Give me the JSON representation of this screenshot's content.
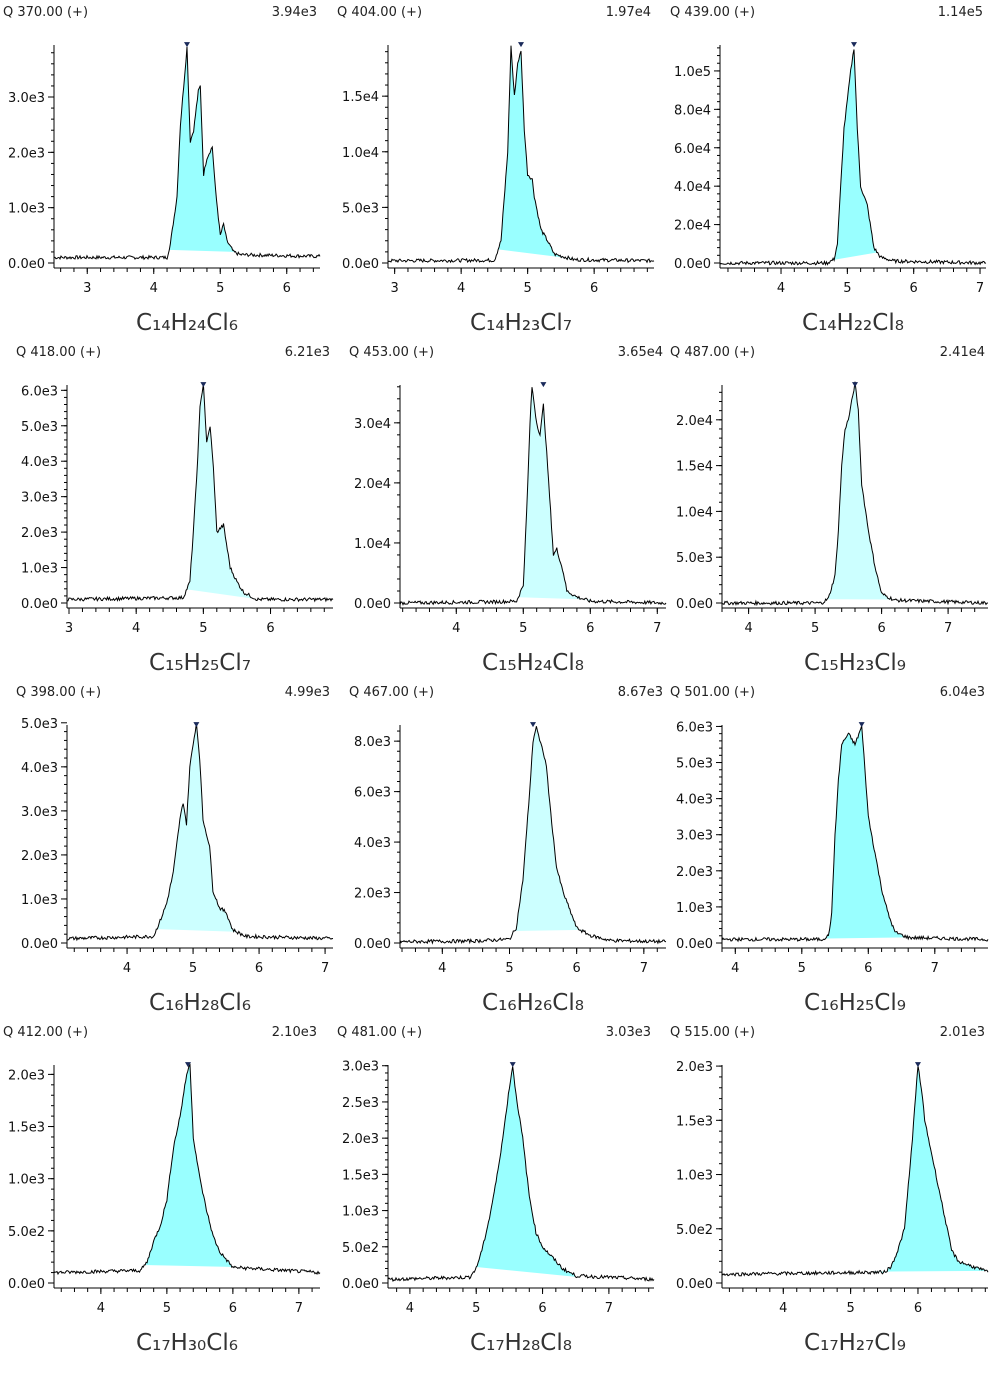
{
  "chart_data": [
    {
      "type": "area",
      "title": "Q 370.00 (+)",
      "max_label": "3.94e3",
      "formula": "C₁₄H₂₄Cl₆",
      "fill_color": "#99ffff",
      "xlim": [
        2.5,
        6.5
      ],
      "xticks": [
        3,
        4,
        5,
        6
      ],
      "ylim": [
        0,
        3940
      ],
      "yticks": [
        0,
        1000,
        2000,
        3000
      ],
      "ytick_labels": [
        "0.0e0",
        "1.0e3",
        "2.0e3",
        "3.0e3"
      ],
      "peak_x": 4.5,
      "integration": [
        4.22,
        5.22
      ],
      "x": [
        2.5,
        4.2,
        4.25,
        4.35,
        4.4,
        4.45,
        4.5,
        4.55,
        4.6,
        4.67,
        4.7,
        4.75,
        4.8,
        4.88,
        4.93,
        5.0,
        5.05,
        5.1,
        5.2,
        5.3,
        6.5
      ],
      "y": [
        100,
        100,
        350,
        1200,
        2500,
        3200,
        3900,
        2200,
        2400,
        3100,
        3200,
        1600,
        1900,
        2100,
        1300,
        500,
        700,
        400,
        200,
        150,
        120
      ]
    },
    {
      "type": "area",
      "title": "Q 404.00 (+)",
      "max_label": "1.97e4",
      "formula": "C₁₄H₂₃Cl₇",
      "fill_color": "#99ffff",
      "xlim": [
        2.9,
        6.9
      ],
      "xticks": [
        3,
        4,
        5,
        6
      ],
      "ylim": [
        0,
        19600
      ],
      "yticks": [
        0,
        5000,
        10000,
        15000
      ],
      "ytick_labels": [
        "0.0e0",
        "5.0e3",
        "1.0e4",
        "1.5e4"
      ],
      "peak_x": 4.9,
      "integration": [
        4.55,
        5.7
      ],
      "x": [
        2.9,
        4.5,
        4.6,
        4.7,
        4.75,
        4.8,
        4.85,
        4.9,
        4.95,
        5.0,
        5.07,
        5.1,
        5.2,
        5.3,
        5.4,
        5.7,
        6.9
      ],
      "y": [
        200,
        250,
        2000,
        10000,
        19500,
        15000,
        18000,
        19000,
        12000,
        8000,
        7500,
        6000,
        3000,
        2000,
        800,
        300,
        200
      ]
    },
    {
      "type": "area",
      "title": "Q 439.00 (+)",
      "max_label": "1.14e5",
      "formula": "C₁₄H₂₂Cl₈",
      "fill_color": "#99ffff",
      "xlim": [
        3.08,
        7.09
      ],
      "xticks": [
        4,
        5,
        6,
        7
      ],
      "ylim": [
        0,
        113500
      ],
      "yticks": [
        0,
        20000,
        40000,
        60000,
        80000,
        100000
      ],
      "ytick_labels": [
        "0.0e0",
        "2.0e4",
        "4.0e4",
        "6.0e4",
        "8.0e4",
        "1.0e5"
      ],
      "peak_x": 5.1,
      "integration": [
        4.75,
        5.45
      ],
      "x": [
        3.08,
        4.7,
        4.8,
        4.85,
        4.9,
        4.95,
        5.0,
        5.05,
        5.1,
        5.15,
        5.2,
        5.3,
        5.4,
        5.5,
        5.7,
        7.09
      ],
      "y": [
        0,
        0,
        2000,
        10000,
        40000,
        70000,
        85000,
        100000,
        112000,
        70000,
        40000,
        30000,
        8000,
        3000,
        1000,
        0
      ]
    },
    {
      "type": "area",
      "title": "Q 418.00 (+)",
      "max_label": "6.21e3",
      "formula": "C₁₅H₂₅Cl₇",
      "fill_color": "#ccffff",
      "xlim": [
        2.97,
        6.93
      ],
      "xticks": [
        3,
        4,
        5,
        6
      ],
      "ylim": [
        0,
        6150
      ],
      "yticks": [
        0,
        1000,
        2000,
        3000,
        4000,
        5000,
        6000
      ],
      "ytick_labels": [
        "0.0e0",
        "1.0e3",
        "2.0e3",
        "3.0e3",
        "4.0e3",
        "5.0e3",
        "6.0e3"
      ],
      "peak_x": 5.0,
      "integration": [
        4.75,
        5.75
      ],
      "x": [
        2.97,
        4.7,
        4.8,
        4.85,
        4.9,
        4.95,
        5.0,
        5.05,
        5.1,
        5.15,
        5.2,
        5.3,
        5.4,
        5.5,
        5.6,
        5.8,
        6.93
      ],
      "y": [
        100,
        150,
        600,
        2000,
        3500,
        5500,
        6200,
        4500,
        5000,
        3800,
        2000,
        2200,
        1000,
        600,
        300,
        100,
        100
      ]
    },
    {
      "type": "area",
      "title": "Q 453.00 (+)",
      "max_label": "3.65e4",
      "formula": "C₁₅H₂₄Cl₈",
      "fill_color": "#ccffff",
      "xlim": [
        3.16,
        7.13
      ],
      "xticks": [
        4,
        5,
        6,
        7
      ],
      "ylim": [
        0,
        36300
      ],
      "yticks": [
        0,
        10000,
        20000,
        30000
      ],
      "ytick_labels": [
        "0.0e0",
        "1.0e4",
        "2.0e4",
        "3.0e4"
      ],
      "peak_x": 5.3,
      "integration": [
        4.92,
        6.0
      ],
      "x": [
        3.16,
        4.6,
        4.9,
        5.0,
        5.05,
        5.1,
        5.13,
        5.2,
        5.25,
        5.3,
        5.35,
        5.45,
        5.5,
        5.6,
        5.65,
        5.8,
        6.0,
        7.13
      ],
      "y": [
        0,
        200,
        300,
        3000,
        15000,
        30000,
        36000,
        30000,
        28000,
        33000,
        25000,
        8000,
        9000,
        5000,
        2000,
        1000,
        300,
        0
      ]
    },
    {
      "type": "area",
      "title": "Q 487.00 (+)",
      "max_label": "2.41e4",
      "formula": "C₁₅H₂₃Cl₉",
      "fill_color": "#ccffff",
      "xlim": [
        3.6,
        7.6
      ],
      "xticks": [
        4,
        5,
        6,
        7
      ],
      "ylim": [
        0,
        23800
      ],
      "yticks": [
        0,
        5000,
        10000,
        15000,
        20000
      ],
      "ytick_labels": [
        "0.0e0",
        "5.0e3",
        "1.0e4",
        "1.5e4",
        "2.0e4"
      ],
      "peak_x": 5.6,
      "integration": [
        5.15,
        6.2
      ],
      "x": [
        3.6,
        5.1,
        5.2,
        5.3,
        5.35,
        5.4,
        5.45,
        5.5,
        5.55,
        5.6,
        5.65,
        5.7,
        5.8,
        5.9,
        6.0,
        6.2,
        7.6
      ],
      "y": [
        0,
        0,
        500,
        3000,
        8000,
        15000,
        19000,
        20000,
        22000,
        24000,
        21000,
        13000,
        8000,
        4000,
        1000,
        300,
        0
      ]
    },
    {
      "type": "area",
      "title": "Q 398.00 (+)",
      "max_label": "4.99e3",
      "formula": "C₁₆H₂₈Cl₆",
      "fill_color": "#ccffff",
      "xlim": [
        3.09,
        7.12
      ],
      "xticks": [
        4,
        5,
        6,
        7
      ],
      "ylim": [
        0,
        4950
      ],
      "yticks": [
        0,
        1000,
        2000,
        3000,
        4000,
        5000
      ],
      "ytick_labels": [
        "0.0e0",
        "1.0e3",
        "2.0e3",
        "3.0e3",
        "4.0e3",
        "5.0e3"
      ],
      "peak_x": 5.05,
      "integration": [
        4.45,
        5.65
      ],
      "x": [
        3.09,
        4.4,
        4.5,
        4.6,
        4.7,
        4.8,
        4.85,
        4.9,
        4.95,
        5.0,
        5.05,
        5.1,
        5.15,
        5.2,
        5.25,
        5.3,
        5.4,
        5.5,
        5.6,
        5.8,
        7.12
      ],
      "y": [
        100,
        150,
        500,
        900,
        1600,
        2800,
        3200,
        2700,
        4000,
        4500,
        5000,
        4200,
        2800,
        2500,
        2200,
        1200,
        800,
        700,
        300,
        150,
        100
      ]
    },
    {
      "type": "area",
      "title": "Q 467.00 (+)",
      "max_label": "8.67e3",
      "formula": "C₁₆H₂₆Cl₈",
      "fill_color": "#ccffff",
      "xlim": [
        3.37,
        7.33
      ],
      "xticks": [
        4,
        5,
        6,
        7
      ],
      "ylim": [
        0,
        8640
      ],
      "yticks": [
        0,
        2000,
        4000,
        6000,
        8000
      ],
      "ytick_labels": [
        "0.0e0",
        "2.0e3",
        "4.0e3",
        "6.0e3",
        "8.0e3"
      ],
      "peak_x": 5.35,
      "integration": [
        5.05,
        6.1
      ],
      "x": [
        3.37,
        4.5,
        5.0,
        5.1,
        5.2,
        5.3,
        5.35,
        5.4,
        5.45,
        5.5,
        5.55,
        5.6,
        5.7,
        5.8,
        5.9,
        6.0,
        6.2,
        6.5,
        7.33
      ],
      "y": [
        50,
        80,
        150,
        600,
        2500,
        6000,
        8000,
        8600,
        8000,
        7600,
        7000,
        5500,
        3000,
        2000,
        1300,
        600,
        300,
        100,
        50
      ]
    },
    {
      "type": "area",
      "title": "Q 501.00 (+)",
      "max_label": "6.04e3",
      "formula": "C₁₆H₂₅Cl₉",
      "fill_color": "#99ffff",
      "xlim": [
        3.8,
        7.8
      ],
      "xticks": [
        4,
        5,
        6,
        7
      ],
      "ylim": [
        0,
        6040
      ],
      "yticks": [
        0,
        1000,
        2000,
        3000,
        4000,
        5000,
        6000
      ],
      "ytick_labels": [
        "0.0e0",
        "1.0e3",
        "2.0e3",
        "3.0e3",
        "4.0e3",
        "5.0e3",
        "6.0e3"
      ],
      "peak_x": 5.9,
      "integration": [
        5.35,
        6.55
      ],
      "x": [
        3.8,
        5.3,
        5.4,
        5.45,
        5.5,
        5.55,
        5.6,
        5.7,
        5.8,
        5.9,
        5.95,
        6.0,
        6.1,
        6.2,
        6.3,
        6.4,
        6.6,
        7.8
      ],
      "y": [
        100,
        100,
        200,
        800,
        3000,
        4500,
        5500,
        5800,
        5500,
        6000,
        4800,
        3500,
        2500,
        1500,
        800,
        300,
        150,
        100
      ]
    },
    {
      "type": "area",
      "title": "Q 412.00 (+)",
      "max_label": "2.10e3",
      "formula": "C₁₇H₃₀Cl₆",
      "fill_color": "#99ffff",
      "xlim": [
        3.29,
        7.32
      ],
      "xticks": [
        4,
        5,
        6,
        7
      ],
      "ylim": [
        0,
        2090
      ],
      "yticks": [
        0,
        500,
        1000,
        1500,
        2000
      ],
      "ytick_labels": [
        "0.0e0",
        "5.0e2",
        "1.0e3",
        "1.5e3",
        "2.0e3"
      ],
      "peak_x": 5.32,
      "integration": [
        4.65,
        6.05
      ],
      "x": [
        3.29,
        4.6,
        4.7,
        4.8,
        4.9,
        5.0,
        5.1,
        5.2,
        5.3,
        5.35,
        5.4,
        5.5,
        5.6,
        5.7,
        5.8,
        6.0,
        7.32
      ],
      "y": [
        100,
        120,
        200,
        400,
        550,
        800,
        1300,
        1600,
        2000,
        2100,
        1400,
        1000,
        700,
        450,
        300,
        150,
        100
      ]
    },
    {
      "type": "area",
      "title": "Q 481.00 (+)",
      "max_label": "3.03e3",
      "formula": "C₁₇H₂₈Cl₈",
      "fill_color": "#99ffff",
      "xlim": [
        3.67,
        7.68
      ],
      "xticks": [
        4,
        5,
        6,
        7
      ],
      "ylim": [
        0,
        3010
      ],
      "yticks": [
        0,
        500,
        1000,
        1500,
        2000,
        2500,
        3000
      ],
      "ytick_labels": [
        "0.0e0",
        "5.0e2",
        "1.0e3",
        "1.5e3",
        "2.0e3",
        "2.5e3",
        "3.0e3"
      ],
      "peak_x": 5.55,
      "integration": [
        5.0,
        6.55
      ],
      "x": [
        3.67,
        4.9,
        5.0,
        5.1,
        5.2,
        5.3,
        5.4,
        5.5,
        5.55,
        5.6,
        5.7,
        5.8,
        5.9,
        6.0,
        6.1,
        6.3,
        6.5,
        7.68
      ],
      "y": [
        50,
        80,
        200,
        500,
        900,
        1400,
        2000,
        2700,
        3000,
        2600,
        2000,
        1200,
        700,
        500,
        400,
        200,
        100,
        50
      ]
    },
    {
      "type": "area",
      "title": "Q 515.00 (+)",
      "max_label": "2.01e3",
      "formula": "C₁₇H₂₇Cl₉",
      "fill_color": "#99ffff",
      "xlim": [
        3.09,
        7.04
      ],
      "xticks": [
        4,
        5,
        6
      ],
      "ylim": [
        0,
        2010
      ],
      "yticks": [
        0,
        500,
        1000,
        1500,
        2000
      ],
      "ytick_labels": [
        "0.0e0",
        "5.0e2",
        "1.0e3",
        "1.5e3",
        "2.0e3"
      ],
      "peak_x": 6.0,
      "integration": [
        5.3,
        7.0
      ],
      "x": [
        3.09,
        5.5,
        5.6,
        5.7,
        5.8,
        5.9,
        5.95,
        6.0,
        6.05,
        6.1,
        6.2,
        6.3,
        6.4,
        6.5,
        6.6,
        7.04
      ],
      "y": [
        80,
        100,
        150,
        300,
        500,
        1200,
        1600,
        2000,
        1800,
        1500,
        1200,
        900,
        600,
        300,
        200,
        100
      ]
    }
  ]
}
